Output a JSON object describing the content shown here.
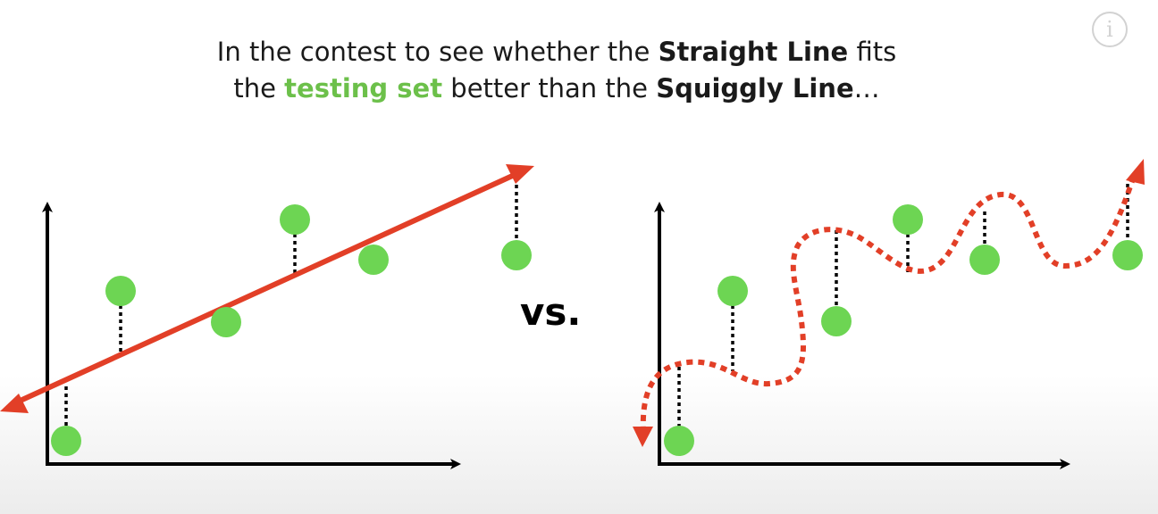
{
  "caption": {
    "line1": {
      "text_a": "In the contest to see whether the ",
      "bold_a": "Straight Line",
      "text_b": " fits"
    },
    "line2": {
      "text_a": "the ",
      "green": "testing set",
      "text_b": " better than the ",
      "bold_b": "Squiggly Line",
      "text_c": "…"
    }
  },
  "vs_label": "vs.",
  "info_icon": "info-icon",
  "colors": {
    "point": "#6dd553",
    "line": "#e23f27",
    "axis": "#000000",
    "highlight": "#6cc04a"
  },
  "diagram": {
    "left_panel": "straight-line-fit",
    "right_panel": "squiggly-line-fit",
    "testing_points": 6
  }
}
